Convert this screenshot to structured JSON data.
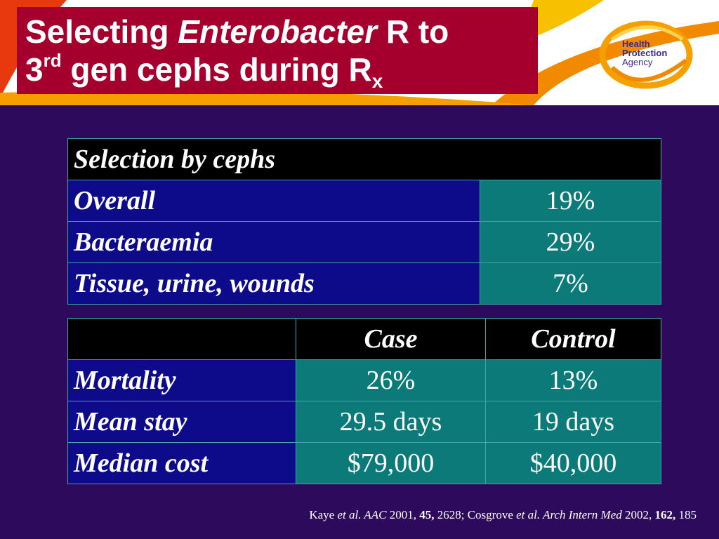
{
  "title": {
    "line1_a": "Selecting ",
    "line1_italic": "Enterobacter",
    "line1_b": " R to",
    "line2_num": "3",
    "line2_sup": "rd",
    "line2_text": " gen cephs during R",
    "line2_sub": "x"
  },
  "logo": {
    "line1": "Health",
    "line2": "Protection",
    "line3": "Agency"
  },
  "table1": {
    "header": "Selection by cephs",
    "rows": [
      {
        "label": "Overall",
        "value": "19%"
      },
      {
        "label": "Bacteraemia",
        "value": "29%"
      },
      {
        "label": "Tissue, urine, wounds",
        "value": "7%"
      }
    ]
  },
  "table2": {
    "col_case": "Case",
    "col_control": "Control",
    "rows": [
      {
        "label": "Mortality",
        "case": "26%",
        "control": "13%"
      },
      {
        "label": "Mean stay",
        "case": "29.5 days",
        "control": "19 days"
      },
      {
        "label": "Median cost",
        "case": "$79,000",
        "control": "$40,000"
      }
    ]
  },
  "citation": {
    "a": "Kaye ",
    "b": "et al. AAC",
    "c": " 2001, ",
    "d": "45,",
    "e": " 2628; Cosgrove ",
    "f": "et al. Arch Intern Med",
    "g": " 2002, ",
    "h": "162,",
    "i": " 185"
  },
  "colors": {
    "background": "#2e0a5c",
    "title_box": "#a5002d",
    "label_cell": "#0d0b8a",
    "value_cell": "#0b7a78",
    "header_cell": "#000000",
    "swoosh_orange": "#f28a00",
    "swoosh_red": "#e8380d"
  }
}
